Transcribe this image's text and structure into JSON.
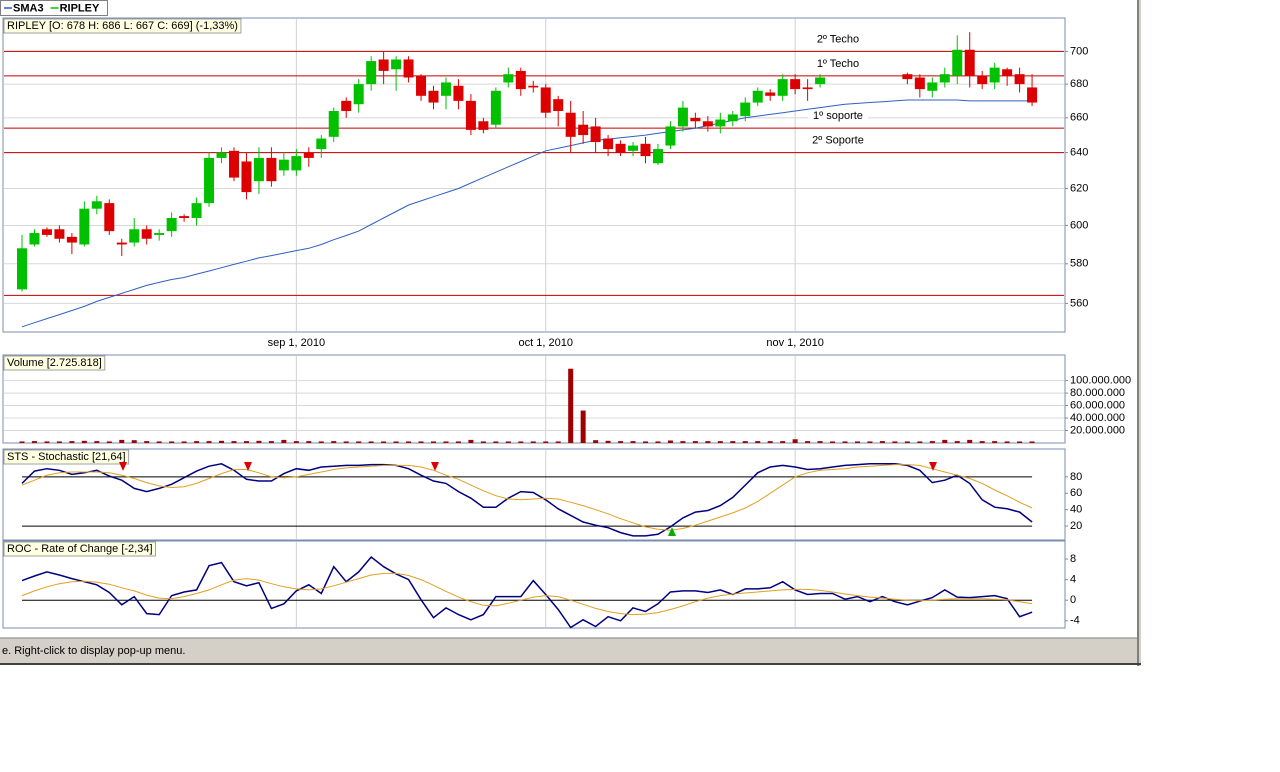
{
  "chart_data": [
    {
      "type": "candlestick",
      "title": "RIPLEY [O: 678  H: 686  L: 667  C: 669] (-1,33%)",
      "categories": [
        null,
        null,
        null,
        null,
        null,
        null,
        null,
        null,
        null,
        null,
        null,
        null,
        null,
        null,
        null,
        null,
        null,
        null,
        null,
        null,
        null,
        null,
        "sep 1, 2010",
        null,
        null,
        null,
        null,
        null,
        null,
        null,
        null,
        null,
        null,
        null,
        null,
        null,
        null,
        null,
        null,
        null,
        null,
        null,
        "oct 1, 2010",
        null,
        null,
        null,
        null,
        null,
        null,
        null,
        null,
        null,
        null,
        null,
        null,
        null,
        null,
        null,
        null,
        null,
        null,
        null,
        "nov 1, 2010",
        null,
        null,
        null,
        null,
        null,
        null,
        null,
        null,
        null,
        null,
        null,
        null,
        null,
        null,
        null,
        null,
        null,
        null,
        null
      ],
      "series": [
        {
          "name": "SMA3",
          "color": "#3060c0",
          "values": [
            548.5,
            550.5,
            552.5,
            554.5,
            556.5,
            558.5,
            561,
            563,
            565,
            567,
            569,
            570.5,
            572,
            573,
            574.7,
            576.3,
            578,
            579.7,
            581.3,
            583,
            584.2,
            585.5,
            586.8,
            588,
            590,
            592.5,
            594.7,
            597,
            600.5,
            604,
            607.5,
            611,
            613.2,
            615.5,
            617.7,
            620,
            623,
            626,
            629,
            632,
            635,
            638,
            641,
            642.5,
            644,
            645.5,
            647,
            647.7,
            648.5,
            649.2,
            650,
            651,
            652,
            653,
            654,
            655.5,
            657,
            658.5,
            660,
            661,
            662,
            663,
            664,
            665,
            666,
            667,
            668,
            668.5,
            669,
            669.5,
            670,
            670.5,
            670.5,
            670.5,
            670.5,
            670.5,
            670,
            670,
            670,
            670,
            670,
            670
          ]
        },
        {
          "name": "RIPLEY",
          "color": "#00c000",
          "down_color": "#dd0000",
          "open": [
            567,
            590,
            598,
            598,
            594,
            590,
            609,
            612,
            591,
            591,
            598,
            595,
            597,
            605,
            604,
            612,
            637,
            641,
            635,
            624,
            637,
            630,
            630,
            640,
            642,
            649,
            670,
            668,
            680,
            695,
            689,
            695,
            685,
            676,
            673,
            679,
            670,
            658,
            656,
            681,
            688,
            679,
            678,
            671,
            663,
            656,
            655,
            648,
            645,
            641,
            645,
            634,
            644,
            655,
            660,
            658,
            655,
            658,
            661,
            669,
            675,
            673,
            683,
            678,
            680,
            null,
            null,
            null,
            null,
            null,
            null,
            686,
            684,
            676,
            681,
            685,
            701,
            685,
            681,
            689,
            686,
            678
          ],
          "high": [
            595,
            598,
            599,
            600,
            596,
            613,
            616,
            614,
            593,
            604,
            600,
            598,
            607,
            606,
            615,
            640,
            643,
            643,
            640,
            643,
            643,
            640,
            642,
            643,
            650,
            666,
            672,
            683,
            697,
            700,
            697,
            697,
            686,
            679,
            684,
            683,
            674,
            660,
            678,
            690,
            690,
            682,
            680,
            673,
            670,
            664,
            660,
            650,
            647,
            646,
            649,
            645,
            658,
            670,
            663,
            661,
            663,
            664,
            672,
            678,
            677,
            686,
            686,
            683,
            686,
            null,
            null,
            null,
            null,
            null,
            null,
            687,
            686,
            684,
            690,
            710,
            712,
            688,
            693,
            690,
            690,
            686
          ],
          "low": [
            566,
            589,
            594,
            591,
            585,
            589,
            606,
            595,
            584,
            589,
            590,
            592,
            594,
            602,
            600,
            610,
            634,
            624,
            614,
            617,
            621,
            627,
            627,
            632,
            637,
            646,
            660,
            663,
            676,
            680,
            676,
            681,
            670,
            665,
            665,
            665,
            650,
            651,
            654,
            678,
            673,
            675,
            660,
            655,
            640,
            645,
            640,
            638,
            638,
            638,
            634,
            633,
            642,
            652,
            654,
            652,
            651,
            655,
            658,
            667,
            670,
            670,
            674,
            670,
            678,
            null,
            null,
            null,
            null,
            null,
            null,
            680,
            672,
            672,
            678,
            680,
            678,
            677,
            677,
            679,
            675,
            667
          ],
          "close": [
            588,
            596,
            595,
            593,
            591,
            609,
            613,
            597,
            590,
            598,
            593,
            596,
            604,
            604,
            612,
            637,
            640,
            626,
            618,
            637,
            624,
            636,
            638,
            637,
            648,
            664,
            664,
            680,
            694,
            688,
            695,
            684,
            673,
            669,
            681,
            670,
            653,
            653,
            676,
            686,
            677,
            678,
            663,
            664,
            649,
            650,
            646,
            642,
            640,
            644,
            638,
            642,
            655,
            666,
            658,
            655,
            659,
            662,
            669,
            676,
            673,
            683,
            677,
            677,
            684,
            null,
            null,
            null,
            null,
            null,
            null,
            683,
            677,
            681,
            686,
            701,
            685,
            680,
            690,
            685,
            680,
            669
          ]
        }
      ],
      "ylim": [
        546,
        721
      ],
      "yticks": [
        560,
        580,
        600,
        620,
        640,
        660,
        680,
        700
      ],
      "log_scale": true,
      "grid": true,
      "line_color": "#c00000",
      "horizontal_lines": [
        {
          "value": 700,
          "label": "2º Techo"
        },
        {
          "value": 685,
          "label": "1º Techo"
        },
        {
          "value": 654,
          "label": "1º soporte"
        },
        {
          "value": 640,
          "label": "2º Soporte"
        },
        {
          "value": 564
        }
      ]
    },
    {
      "type": "bar",
      "title": "Volume [2.725.818]",
      "color": "#a00000",
      "values": [
        2500000,
        3000000,
        2500000,
        2500000,
        3000000,
        3500000,
        3000000,
        2500000,
        5000000,
        4500000,
        3000000,
        2500000,
        2500000,
        2500000,
        3000000,
        3000000,
        3500000,
        3000000,
        3000000,
        3500000,
        3000000,
        5000000,
        3000000,
        3000000,
        2500000,
        3000000,
        2500000,
        2500000,
        2500000,
        2500000,
        2500000,
        2500000,
        2500000,
        2500000,
        2500000,
        2500000,
        5000000,
        2500000,
        2500000,
        2500000,
        2500000,
        2500000,
        2500000,
        2500000,
        119000000,
        52000000,
        4500000,
        3500000,
        3000000,
        3000000,
        2500000,
        2500000,
        4000000,
        3000000,
        3000000,
        3000000,
        3000000,
        3000000,
        3000000,
        3000000,
        3000000,
        3000000,
        6000000,
        3000000,
        3000000,
        2500000,
        2500000,
        2500000,
        2500000,
        3000000,
        2500000,
        2500000,
        2500000,
        3000000,
        5000000,
        3000000,
        5000000,
        3000000,
        3000000,
        2500000,
        2500000,
        2500000
      ],
      "ylim": [
        0,
        141000000
      ],
      "grid": true,
      "yticks": [
        {
          "value": 20000000,
          "label": "20.000.000"
        },
        {
          "value": 40000000,
          "label": "40.000.000"
        },
        {
          "value": 60000000,
          "label": "60.000.000"
        },
        {
          "value": 80000000,
          "label": "80.000.000"
        },
        {
          "value": 100000000,
          "label": "100.000.000"
        }
      ]
    },
    {
      "type": "line",
      "title": "STS - Stochastic [21,64]",
      "series": [
        {
          "color": "#000080",
          "values": [
            72,
            87,
            90,
            88,
            83,
            85,
            88,
            81,
            76,
            66,
            62,
            66,
            71,
            79,
            87,
            93,
            96,
            88,
            77,
            75,
            75,
            84,
            90,
            88,
            92,
            93,
            94,
            94,
            95,
            95,
            94,
            90,
            82,
            75,
            72,
            62,
            54,
            43,
            43,
            54,
            62,
            61,
            52,
            41,
            33,
            25,
            21,
            18,
            12,
            8,
            8,
            10,
            19,
            30,
            37,
            39,
            45,
            55,
            70,
            85,
            92,
            94,
            92,
            89,
            90,
            92,
            94,
            95,
            96,
            96,
            96,
            94,
            88,
            73,
            76,
            82,
            72,
            52,
            43,
            41,
            37,
            25
          ]
        },
        {
          "color": "#e0a020",
          "values": [
            70,
            76,
            82,
            85,
            86,
            86,
            86,
            85,
            82,
            78,
            73,
            69,
            67,
            68,
            72,
            78,
            84,
            89,
            89,
            85,
            80,
            79,
            80,
            83,
            86,
            89,
            91,
            92,
            93,
            94,
            94,
            94,
            92,
            88,
            82,
            77,
            70,
            63,
            57,
            53,
            52,
            53,
            54,
            53,
            49,
            45,
            40,
            35,
            29,
            24,
            19,
            16,
            15,
            17,
            21,
            26,
            31,
            36,
            42,
            50,
            60,
            70,
            80,
            85,
            88,
            89,
            90,
            92,
            93,
            94,
            95,
            95,
            94,
            90,
            86,
            82,
            78,
            72,
            64,
            57,
            49,
            42
          ]
        }
      ],
      "ylim": [
        3,
        114
      ],
      "yticks": [
        20,
        40,
        60,
        80
      ],
      "reference_lines": [
        20,
        80
      ]
    },
    {
      "type": "line",
      "title": "ROC - Rate of Change [-2,34]",
      "series": [
        {
          "color": "#000080",
          "values": [
            3.8,
            4.7,
            5.5,
            4.9,
            4.2,
            3.6,
            3.0,
            1.5,
            -0.9,
            0.7,
            -2.6,
            -2.8,
            0.9,
            1.6,
            2.0,
            6.7,
            7.3,
            3.6,
            2.8,
            3.4,
            -1.6,
            -0.7,
            1.8,
            3.0,
            1.3,
            6.5,
            3.6,
            5.5,
            8.4,
            6.5,
            5.1,
            4.0,
            0.1,
            -3.4,
            -1.5,
            -2.8,
            -3.8,
            -2.8,
            0.7,
            0.7,
            0.7,
            3.8,
            1.1,
            -1.8,
            -5.3,
            -3.8,
            -5.1,
            -3.2,
            -4.0,
            -1.5,
            -2.2,
            -0.7,
            1.6,
            1.8,
            1.8,
            1.5,
            2.0,
            1.1,
            2.2,
            2.2,
            2.4,
            3.6,
            2.0,
            1.1,
            1.3,
            1.3,
            0.2,
            0.7,
            -0.3,
            0.7,
            -0.3,
            -0.9,
            -0.2,
            0.5,
            2.0,
            0.6,
            0.5,
            0.7,
            0.9,
            0.3,
            -3.2,
            -2.34
          ]
        },
        {
          "color": "#e0a020",
          "values": [
            0.9,
            1.8,
            2.6,
            3.2,
            3.6,
            3.7,
            3.5,
            3.1,
            2.4,
            1.8,
            1.0,
            0.4,
            0.3,
            0.7,
            1.3,
            2.0,
            3.0,
            3.9,
            4.2,
            3.9,
            3.2,
            2.6,
            2.2,
            2.0,
            2.2,
            2.8,
            3.5,
            4.2,
            4.9,
            5.2,
            5.2,
            4.8,
            4.0,
            2.9,
            1.7,
            0.6,
            -0.3,
            -1.0,
            -1.1,
            -0.6,
            0.0,
            0.6,
            0.9,
            0.7,
            0.0,
            -0.8,
            -1.6,
            -2.2,
            -2.6,
            -2.8,
            -2.7,
            -2.4,
            -1.8,
            -1.1,
            -0.3,
            0.4,
            0.9,
            1.2,
            1.4,
            1.6,
            1.8,
            2.0,
            2.1,
            2.1,
            1.9,
            1.6,
            1.2,
            0.9,
            0.6,
            0.4,
            0.2,
            0.0,
            -0.1,
            0.0,
            0.2,
            0.3,
            0.3,
            0.3,
            0.2,
            0.1,
            -0.3,
            -0.7
          ]
        }
      ],
      "ylim": [
        -5.4,
        11.5
      ],
      "yticks": [
        -4,
        0,
        4,
        8
      ],
      "reference_lines": [
        0
      ]
    }
  ],
  "status_bar": "e. Right-click to display pop-up menu."
}
